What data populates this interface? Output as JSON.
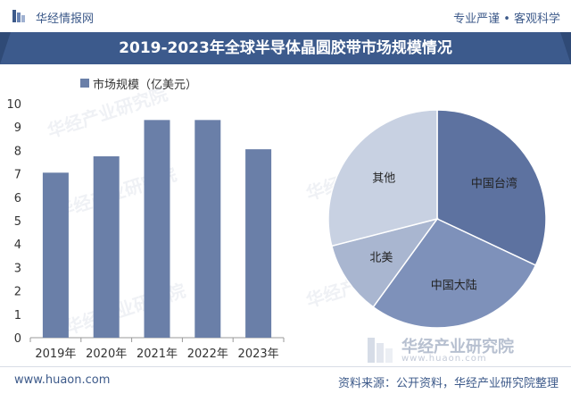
{
  "header": {
    "brand": "华经情报网",
    "tagline": "专业严谨 • 客观科学"
  },
  "title": "2019-2023年全球半导体晶圆胶带市场规模情况",
  "legend_label": "市场规模（亿美元）",
  "watermark": {
    "brand": "华经产业研究院",
    "site": "www.huaon.com"
  },
  "footer": {
    "website": "www.huaon.com",
    "source": "资料来源：公开资料，华经产业研究院整理"
  },
  "colors": {
    "title_bar": "#3c5a8c",
    "bar": "#6a7fa8",
    "pie_taiwan": "#5d72a0",
    "pie_mainland": "#7e91ba",
    "pie_na": "#a9b6d0",
    "pie_other": "#c8d1e2"
  },
  "chart_data": [
    {
      "type": "bar",
      "categories": [
        "2019年",
        "2020年",
        "2021年",
        "2022年",
        "2023年"
      ],
      "series": [
        {
          "values": [
            7.05,
            7.75,
            9.3,
            9.3,
            8.05
          ]
        }
      ],
      "y_ticks": [
        "0",
        "1",
        "2",
        "3",
        "4",
        "5",
        "6",
        "7",
        "8",
        "9",
        "10"
      ],
      "ylim": [
        0,
        10
      ],
      "legend": "top-left"
    },
    {
      "type": "pie",
      "labels": [
        "中国台湾",
        "中国大陆",
        "北美",
        "其他"
      ],
      "values": [
        32,
        28,
        11,
        29
      ]
    }
  ]
}
